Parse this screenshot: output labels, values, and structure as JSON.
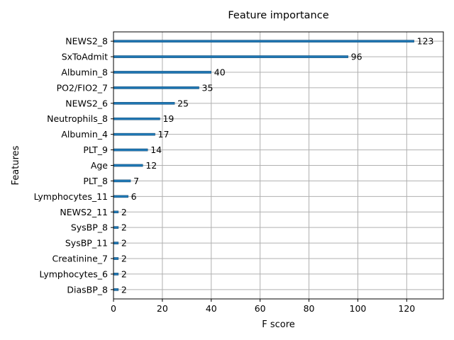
{
  "chart_data": {
    "type": "bar",
    "orientation": "horizontal",
    "title": "Feature importance",
    "xlabel": "F score",
    "ylabel": "Features",
    "xlim": [
      0,
      135
    ],
    "xticks": [
      0,
      20,
      40,
      60,
      80,
      100,
      120
    ],
    "grid": true,
    "bar_color": "#1f77b4",
    "categories": [
      "NEWS2_8",
      "SxToAdmit",
      "Albumin_8",
      "PO2/FIO2_7",
      "NEWS2_6",
      "Neutrophils_8",
      "Albumin_4",
      "PLT_9",
      "Age",
      "PLT_8",
      "Lymphocytes_11",
      "NEWS2_11",
      "SysBP_8",
      "SysBP_11",
      "Creatinine_7",
      "Lymphocytes_6",
      "DiasBP_8"
    ],
    "values": [
      123,
      96,
      40,
      35,
      25,
      19,
      17,
      14,
      12,
      7,
      6,
      2,
      2,
      2,
      2,
      2,
      2
    ]
  }
}
